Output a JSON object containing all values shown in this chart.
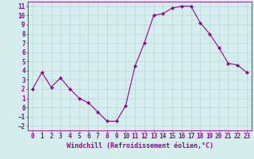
{
  "hours": [
    0,
    1,
    2,
    3,
    4,
    5,
    6,
    7,
    8,
    9,
    10,
    11,
    12,
    13,
    14,
    15,
    16,
    17,
    18,
    19,
    20,
    21,
    22,
    23
  ],
  "values": [
    2.0,
    3.8,
    2.2,
    3.2,
    2.0,
    1.0,
    0.5,
    -0.5,
    -1.5,
    -1.5,
    0.2,
    4.5,
    7.0,
    10.0,
    10.2,
    10.8,
    11.0,
    11.0,
    9.2,
    8.0,
    6.5,
    4.8,
    4.6,
    3.8
  ],
  "line_color": "#990099",
  "marker": "D",
  "marker_size": 2,
  "bg_color": "#d4eeed",
  "grid_color": "#b8d8d8",
  "xlabel": "Windchill (Refroidissement éolien,°C)",
  "xlim": [
    -0.5,
    23.5
  ],
  "ylim": [
    -2.5,
    11.5
  ],
  "yticks": [
    -2,
    -1,
    0,
    1,
    2,
    3,
    4,
    5,
    6,
    7,
    8,
    9,
    10,
    11
  ],
  "xticks": [
    0,
    1,
    2,
    3,
    4,
    5,
    6,
    7,
    8,
    9,
    10,
    11,
    12,
    13,
    14,
    15,
    16,
    17,
    18,
    19,
    20,
    21,
    22,
    23
  ],
  "tick_color": "#990099",
  "font_size": 5.5
}
